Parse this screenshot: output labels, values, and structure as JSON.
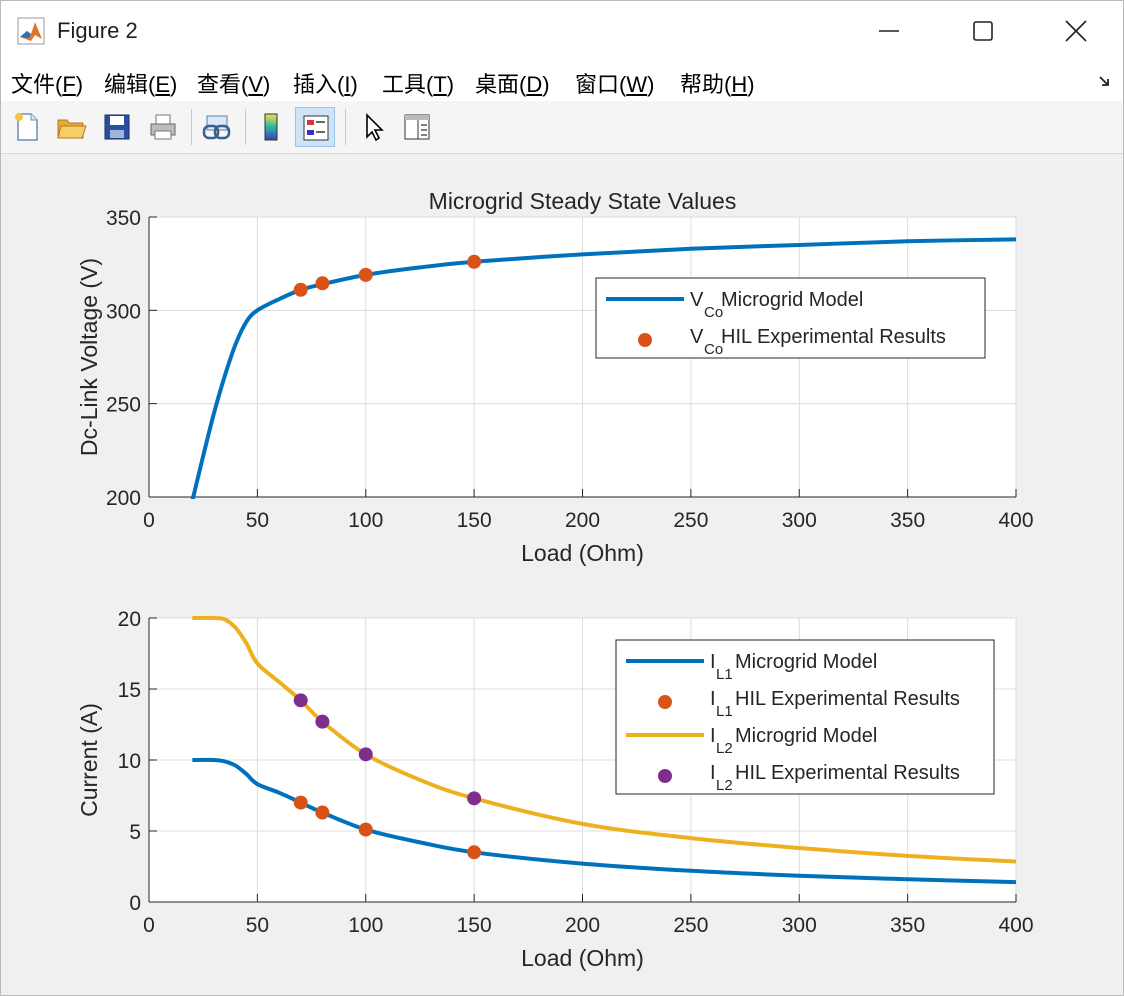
{
  "window": {
    "title": "Figure 2"
  },
  "menu": [
    {
      "label": "文件(",
      "key": "F",
      "end": ")"
    },
    {
      "label": "编辑(",
      "key": "E",
      "end": ")"
    },
    {
      "label": "查看(",
      "key": "V",
      "end": ")"
    },
    {
      "label": "插入(",
      "key": "I",
      "end": ")"
    },
    {
      "label": "工具(",
      "key": "T",
      "end": ")"
    },
    {
      "label": "桌面(",
      "key": "D",
      "end": ")"
    },
    {
      "label": "窗口(",
      "key": "W",
      "end": ")"
    },
    {
      "label": "帮助(",
      "key": "H",
      "end": ")"
    }
  ],
  "toolbar": [
    "new-figure-icon",
    "open-file-icon",
    "save-icon",
    "print-icon",
    "link-plot-icon",
    "colorbar-icon",
    "legend-icon",
    "pointer-icon",
    "property-inspector-icon"
  ],
  "colors": {
    "blue": "#0072bd",
    "orange": "#d95319",
    "yellow": "#edb120",
    "purple": "#7e2f8e"
  },
  "chart_data": [
    {
      "type": "line",
      "title": "Microgrid Steady State Values",
      "xlabel": "Load (Ohm)",
      "ylabel": "Dc-Link Voltage (V)",
      "xlim": [
        0,
        400
      ],
      "ylim": [
        200,
        350
      ],
      "xticks": [
        0,
        50,
        100,
        150,
        200,
        250,
        300,
        350,
        400
      ],
      "yticks": [
        200,
        250,
        300,
        350
      ],
      "grid": true,
      "legend_position": "top-right",
      "series": [
        {
          "name": "V_Co Microgrid Model",
          "style": "line",
          "color": "#0072bd",
          "x": [
            20,
            25,
            30,
            35,
            40,
            45,
            50,
            60,
            70,
            80,
            100,
            125,
            150,
            200,
            250,
            300,
            350,
            400
          ],
          "y": [
            198,
            222,
            245,
            265,
            282,
            294,
            300,
            306,
            311,
            314,
            319,
            323,
            326,
            330,
            333,
            335,
            337,
            338
          ]
        },
        {
          "name": "V_Co HIL Experimental Results",
          "style": "marker",
          "color": "#d95319",
          "x": [
            70,
            80,
            100,
            150
          ],
          "y": [
            311,
            314.5,
            319,
            326
          ]
        }
      ],
      "legend": [
        {
          "main": "V",
          "sub": "Co",
          "rest": " Microgrid Model",
          "style": "line",
          "color": "#0072bd"
        },
        {
          "main": "V",
          "sub": "Co",
          "rest": " HIL Experimental Results",
          "style": "marker",
          "color": "#d95319"
        }
      ]
    },
    {
      "type": "line",
      "title": "",
      "xlabel": "Load (Ohm)",
      "ylabel": "Current (A)",
      "xlim": [
        0,
        400
      ],
      "ylim": [
        0,
        20
      ],
      "xticks": [
        0,
        50,
        100,
        150,
        200,
        250,
        300,
        350,
        400
      ],
      "yticks": [
        0,
        5,
        10,
        15,
        20
      ],
      "grid": true,
      "legend_position": "top-right",
      "series": [
        {
          "name": "I_L1 Microgrid Model",
          "style": "line",
          "color": "#0072bd",
          "x": [
            20,
            30,
            35,
            40,
            45,
            50,
            60,
            70,
            80,
            100,
            125,
            150,
            200,
            250,
            300,
            350,
            400
          ],
          "y": [
            10,
            10,
            9.9,
            9.6,
            9.0,
            8.3,
            7.7,
            7.0,
            6.3,
            5.1,
            4.2,
            3.5,
            2.7,
            2.2,
            1.85,
            1.6,
            1.4
          ]
        },
        {
          "name": "I_L1 HIL Experimental Results",
          "style": "marker",
          "color": "#d95319",
          "x": [
            70,
            80,
            100,
            150
          ],
          "y": [
            7.0,
            6.3,
            5.1,
            3.5
          ]
        },
        {
          "name": "I_L2 Microgrid Model",
          "style": "line",
          "color": "#edb120",
          "x": [
            20,
            30,
            35,
            40,
            45,
            50,
            60,
            70,
            80,
            100,
            125,
            150,
            200,
            250,
            300,
            350,
            400
          ],
          "y": [
            20,
            20,
            19.9,
            19.3,
            18.2,
            16.8,
            15.5,
            14.2,
            12.7,
            10.4,
            8.6,
            7.3,
            5.5,
            4.5,
            3.8,
            3.25,
            2.85
          ]
        },
        {
          "name": "I_L2 HIL Experimental Results",
          "style": "marker",
          "color": "#7e2f8e",
          "x": [
            70,
            80,
            100,
            150
          ],
          "y": [
            14.2,
            12.7,
            10.4,
            7.3
          ]
        }
      ],
      "legend": [
        {
          "main": "I",
          "sub": "L1",
          "rest": " Microgrid Model",
          "style": "line",
          "color": "#0072bd"
        },
        {
          "main": "I",
          "sub": "L1",
          "rest": " HIL Experimental Results",
          "style": "marker",
          "color": "#d95319"
        },
        {
          "main": "I",
          "sub": "L2",
          "rest": " Microgrid Model",
          "style": "line",
          "color": "#edb120"
        },
        {
          "main": "I",
          "sub": "L2",
          "rest": " HIL Experimental Results",
          "style": "marker",
          "color": "#7e2f8e"
        }
      ]
    }
  ]
}
